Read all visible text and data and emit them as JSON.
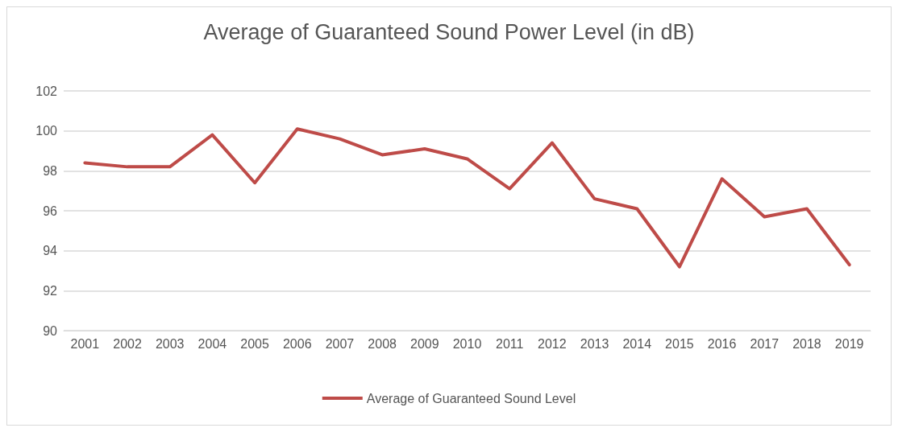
{
  "chart_data": {
    "type": "line",
    "title": "Average of Guaranteed Sound Power Level (in dB)",
    "categories": [
      "2001",
      "2002",
      "2003",
      "2004",
      "2005",
      "2006",
      "2007",
      "2008",
      "2009",
      "2010",
      "2011",
      "2012",
      "2013",
      "2014",
      "2015",
      "2016",
      "2017",
      "2018",
      "2019"
    ],
    "series": [
      {
        "name": "Average of Guaranteed Sound Level",
        "color": "#be4b48",
        "values": [
          98.4,
          98.2,
          98.2,
          99.8,
          97.4,
          100.1,
          99.6,
          98.8,
          99.1,
          98.6,
          97.1,
          99.4,
          96.6,
          96.1,
          93.2,
          97.6,
          95.7,
          96.1,
          93.3
        ]
      }
    ],
    "ylim": [
      90,
      102
    ],
    "yticks": [
      90,
      92,
      94,
      96,
      98,
      100,
      102
    ],
    "grid": "y",
    "legend": "bottom",
    "marker": "none",
    "line_style": "solid"
  }
}
